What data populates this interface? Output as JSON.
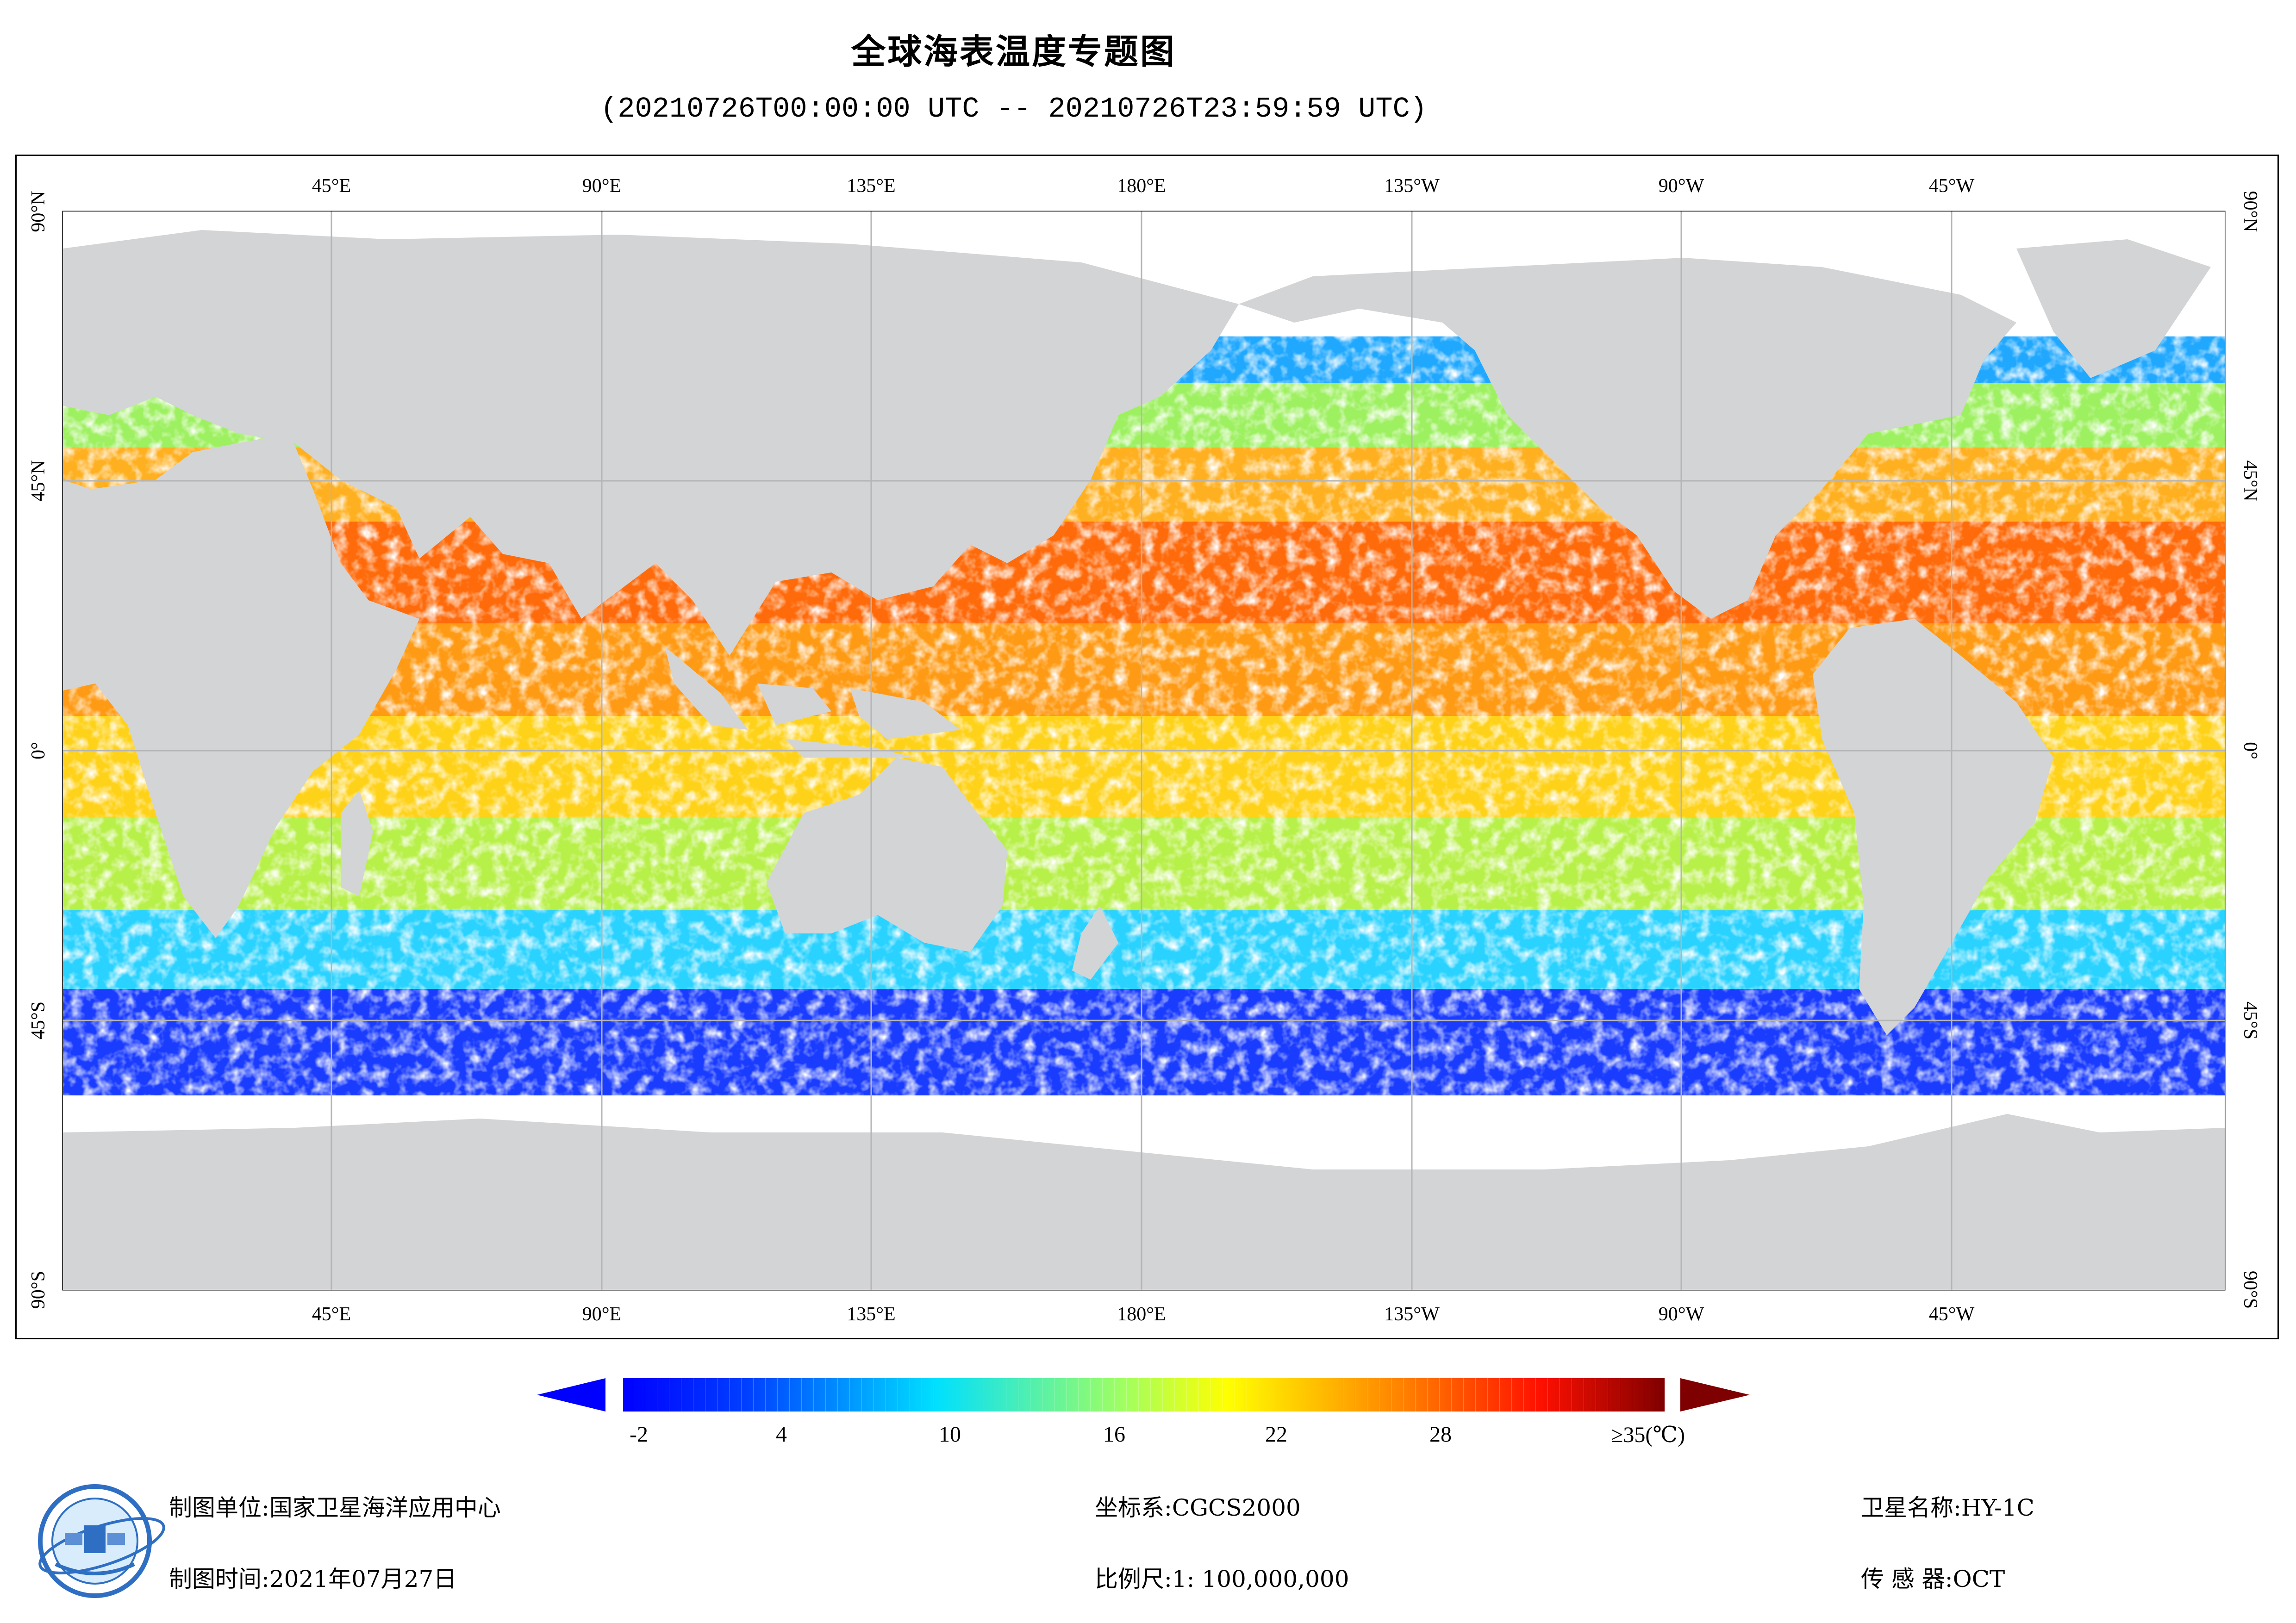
{
  "header": {
    "title": "全球海表温度专题图",
    "time_range": "(20210726T00:00:00 UTC -- 20210726T23:59:59 UTC)"
  },
  "map": {
    "lon_labels": [
      "45°E",
      "90°E",
      "135°E",
      "180°E",
      "135°W",
      "90°W",
      "45°W"
    ],
    "lat_labels": [
      "90°N",
      "45°N",
      "0°",
      "45°S",
      "90°S"
    ],
    "land_color": "#d3d4d6",
    "no_data_color": "#ffffff",
    "grid_color": "#b5b5b5"
  },
  "legend": {
    "tick_labels": [
      "-2",
      "4",
      "10",
      "16",
      "22",
      "28",
      "≥35(℃)"
    ],
    "min": -2,
    "max": 35,
    "left_arrow_color": "#0000ff",
    "right_arrow_color": "#7f0000"
  },
  "footer": {
    "agency_label": "制图单位:",
    "agency": "国家卫星海洋应用中心",
    "date_label": "制图时间:",
    "date": "2021年07月27日",
    "crs_label": "坐标系:",
    "crs": "CGCS2000",
    "scale_label": "比例尺:",
    "scale": "1: 100,000,000",
    "satellite_label": "卫星名称:",
    "satellite": "HY-1C",
    "sensor_label": "传 感 器:",
    "sensor": "OCT"
  }
}
